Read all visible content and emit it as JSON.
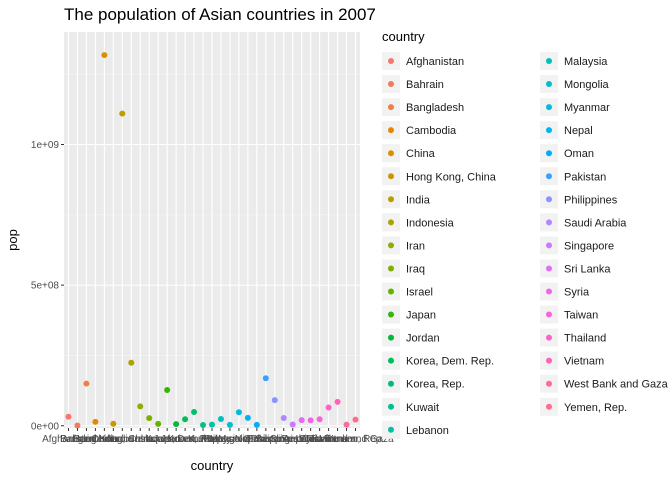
{
  "chart_data": {
    "type": "scatter",
    "title": "The population of Asian countries in 2007",
    "xlabel": "country",
    "ylabel": "pop",
    "ylim": [
      -8000000,
      1400000000
    ],
    "y_ticks": [
      {
        "value": 0,
        "label": "0e+00"
      },
      {
        "value": 500000000,
        "label": "5e+08"
      },
      {
        "value": 1000000000,
        "label": "1e+09"
      }
    ],
    "grid": true,
    "legend_title": "country",
    "legend_position": "right",
    "categories": [
      "Afghanistan",
      "Bahrain",
      "Bangladesh",
      "Cambodia",
      "China",
      "Hong Kong, China",
      "India",
      "Indonesia",
      "Iran",
      "Iraq",
      "Israel",
      "Japan",
      "Jordan",
      "Korea, Dem. Rep.",
      "Korea, Rep.",
      "Kuwait",
      "Lebanon",
      "Malaysia",
      "Mongolia",
      "Myanmar",
      "Nepal",
      "Oman",
      "Pakistan",
      "Philippines",
      "Saudi Arabia",
      "Singapore",
      "Sri Lanka",
      "Syria",
      "Taiwan",
      "Thailand",
      "Vietnam",
      "West Bank and Gaza",
      "Yemen, Rep."
    ],
    "values": [
      32000000,
      700000,
      150000000,
      14000000,
      1318000000,
      7000000,
      1110000000,
      224000000,
      69000000,
      27000000,
      6500000,
      127000000,
      6000000,
      23000000,
      49000000,
      2500000,
      4000000,
      24000000,
      3000000,
      48000000,
      28000000,
      3200000,
      169000000,
      91000000,
      27600000,
      4500000,
      20000000,
      19000000,
      23000000,
      65000000,
      85000000,
      4000000,
      22000000
    ],
    "colors": [
      "#F8766D",
      "#F47A5C",
      "#EF7F45",
      "#E58700",
      "#D89000",
      "#CA9700",
      "#BB9D00",
      "#AAA300",
      "#96A900",
      "#7FAE00",
      "#64B200",
      "#35B600",
      "#00BA38",
      "#00BC59",
      "#00BE70",
      "#00C08B",
      "#00C0A5",
      "#00BFBC",
      "#00BDD0",
      "#00BAE0",
      "#00B4EF",
      "#00ACFC",
      "#35A2FF",
      "#8B93FF",
      "#B385FF",
      "#CF78FF",
      "#E36EF6",
      "#F066EA",
      "#FA62DB",
      "#FF61C9",
      "#FF63B6",
      "#FF68A1",
      "#FF6C90"
    ]
  }
}
